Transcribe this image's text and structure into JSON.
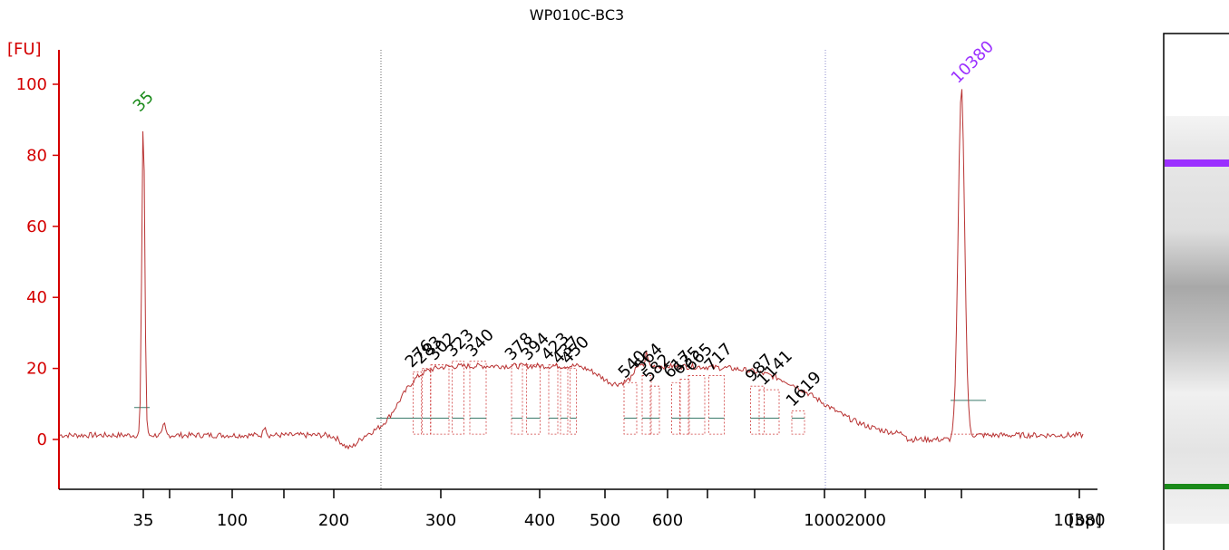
{
  "chart_data": {
    "type": "line",
    "title": "WP010C-BC3",
    "ylabel": "[FU]",
    "xlabel": "[bp]",
    "ylim": [
      -13,
      110
    ],
    "yticks": [
      0,
      20,
      40,
      60,
      80,
      100
    ],
    "ytick_labels": [
      "0",
      "20",
      "40",
      "60",
      "80",
      "100"
    ],
    "x_labeled_ticks": [
      {
        "label": "35",
        "bp": 35
      },
      {
        "label": "100",
        "bp": 100
      },
      {
        "label": "200",
        "bp": 200
      },
      {
        "label": "300",
        "bp": 300
      },
      {
        "label": "400",
        "bp": 400
      },
      {
        "label": "500",
        "bp": 500
      },
      {
        "label": "600",
        "bp": 600
      },
      {
        "label": "1000",
        "bp": 1000
      },
      {
        "label": "2000",
        "bp": 2000
      },
      {
        "label": "10380",
        "bp": 10380
      }
    ],
    "x_unlabeled_ticks_bp": [
      50,
      150,
      700,
      800,
      3000,
      7000
    ],
    "ladder_markers": [
      {
        "label": "35",
        "bp": 35,
        "fu": 91,
        "color": "#1a8a1a"
      },
      {
        "label": "10380",
        "bp": 10380,
        "fu": 99,
        "color": "#9b30ff"
      }
    ],
    "peaks": [
      {
        "label": "276",
        "bp": 276,
        "fu": 19
      },
      {
        "label": "283",
        "bp": 283,
        "fu": 20
      },
      {
        "label": "302",
        "bp": 302,
        "fu": 21
      },
      {
        "label": "323",
        "bp": 323,
        "fu": 22
      },
      {
        "label": "340",
        "bp": 340,
        "fu": 22
      },
      {
        "label": "378",
        "bp": 378,
        "fu": 21
      },
      {
        "label": "394",
        "bp": 394,
        "fu": 21
      },
      {
        "label": "423",
        "bp": 423,
        "fu": 21
      },
      {
        "label": "437",
        "bp": 437,
        "fu": 20
      },
      {
        "label": "450",
        "bp": 450,
        "fu": 20
      },
      {
        "label": "540",
        "bp": 540,
        "fu": 16
      },
      {
        "label": "564",
        "bp": 564,
        "fu": 18
      },
      {
        "label": "582",
        "bp": 582,
        "fu": 15
      },
      {
        "label": "617",
        "bp": 617,
        "fu": 16
      },
      {
        "label": "635",
        "bp": 635,
        "fu": 17
      },
      {
        "label": "665",
        "bp": 665,
        "fu": 18
      },
      {
        "label": "717",
        "bp": 717,
        "fu": 18
      },
      {
        "label": "987",
        "bp": 987,
        "fu": 15
      },
      {
        "label": "1141",
        "bp": 1141,
        "fu": 14
      },
      {
        "label": "1619",
        "bp": 1619,
        "fu": 8
      }
    ],
    "region_boundaries_bp": [
      240,
      2000
    ],
    "trace_color": "#b83232",
    "axis_color": "#d40000"
  }
}
